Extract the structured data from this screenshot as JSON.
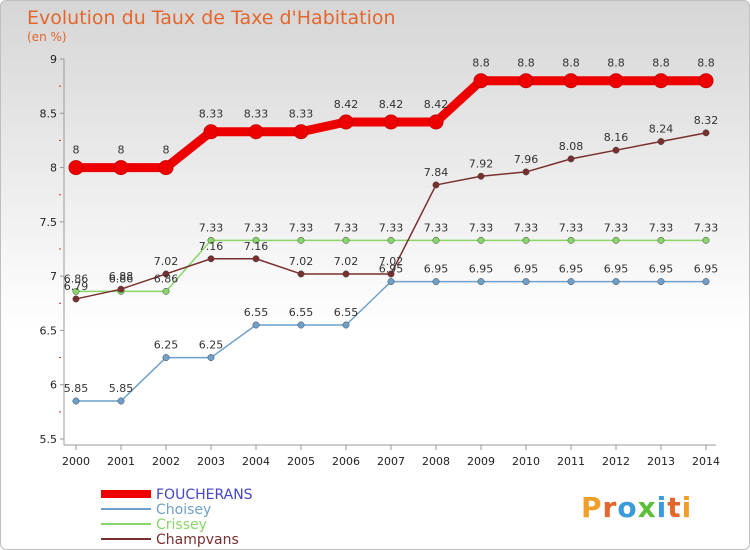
{
  "chart_data": {
    "type": "line",
    "title": "Evolution du Taux de Taxe d'Habitation",
    "ylabel": "(en %)",
    "xlabel": "",
    "x": [
      "2000",
      "2001",
      "2002",
      "2003",
      "2004",
      "2005",
      "2006",
      "2007",
      "2008",
      "2009",
      "2010",
      "2011",
      "2012",
      "2013",
      "2014"
    ],
    "ylim": [
      5.5,
      9
    ],
    "yticks": [
      "5.5",
      "6",
      "6.5",
      "7",
      "7.5",
      "8",
      "8.5",
      "9"
    ],
    "grid": false,
    "legend": "bottom-left",
    "series": [
      {
        "name": "FOUCHERANS",
        "color": "#ee0000",
        "labelColor": "#4444cc",
        "values": [
          8,
          8,
          8,
          8.33,
          8.33,
          8.33,
          8.42,
          8.42,
          8.42,
          8.8,
          8.8,
          8.8,
          8.8,
          8.8,
          8.8
        ],
        "labels": [
          "8",
          "8",
          "8",
          "8.33",
          "8.33",
          "8.33",
          "8.42",
          "8.42",
          "8.42",
          "8.8",
          "8.8",
          "8.8",
          "8.8",
          "8.8",
          "8.8"
        ]
      },
      {
        "name": "Choisey",
        "color": "#6fa0cc",
        "labelColor": "#6fa0cc",
        "values": [
          5.85,
          5.85,
          6.25,
          6.25,
          6.55,
          6.55,
          6.55,
          6.95,
          6.95,
          6.95,
          6.95,
          6.95,
          6.95,
          6.95,
          6.95
        ],
        "labels": [
          "5.85",
          "5.85",
          "6.25",
          "6.25",
          "6.55",
          "6.55",
          "6.55",
          "6.95",
          "6.95",
          "6.95",
          "6.95",
          "6.95",
          "6.95",
          "6.95",
          "6.95"
        ]
      },
      {
        "name": "Crissey",
        "color": "#88d66a",
        "labelColor": "#88d66a",
        "values": [
          6.86,
          6.86,
          6.86,
          7.33,
          7.33,
          7.33,
          7.33,
          7.33,
          7.33,
          7.33,
          7.33,
          7.33,
          7.33,
          7.33,
          7.33
        ],
        "labels": [
          "6.86",
          "6.86",
          "6.86",
          "7.33",
          "7.33",
          "7.33",
          "7.33",
          "7.33",
          "7.33",
          "7.33",
          "7.33",
          "7.33",
          "7.33",
          "7.33",
          "7.33"
        ]
      },
      {
        "name": "Champvans",
        "color": "#7a2f2f",
        "labelColor": "#7a2f2f",
        "values": [
          6.79,
          6.88,
          7.02,
          7.16,
          7.16,
          7.02,
          7.02,
          7.02,
          7.84,
          7.92,
          7.96,
          8.08,
          8.16,
          8.24,
          8.32
        ],
        "labels": [
          "6.79",
          "6.88",
          "7.02",
          "7.16",
          "7.16",
          "7.02",
          "7.02",
          "7.02",
          "7.84",
          "7.92",
          "7.96",
          "8.08",
          "8.16",
          "8.24",
          "8.32"
        ]
      }
    ]
  },
  "brand": {
    "text": "Proxiti"
  }
}
